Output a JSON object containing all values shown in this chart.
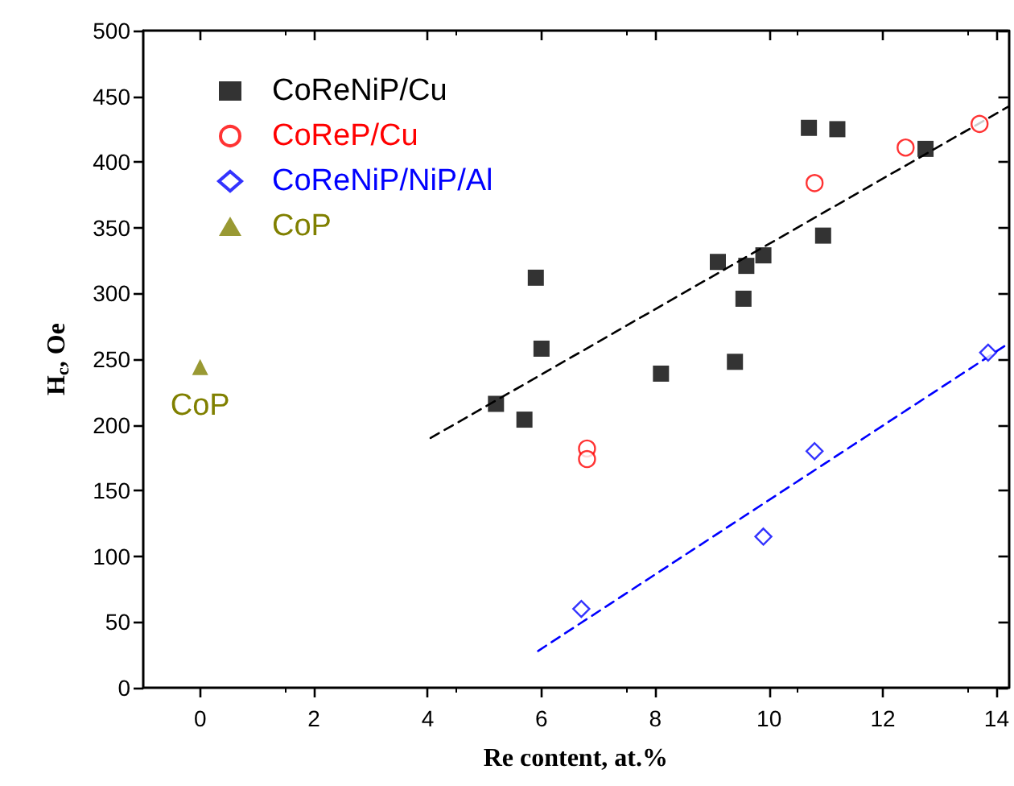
{
  "chart_data": {
    "type": "scatter",
    "xlabel": "Re content, at.%",
    "ylabel": "H$_{c}$, Oe",
    "xlim": [
      -1,
      14.2
    ],
    "xticks": [
      0,
      2,
      4,
      6,
      8,
      10,
      12,
      14
    ],
    "ylim": [
      0,
      500
    ],
    "yticks": [
      0,
      50,
      100,
      150,
      200,
      250,
      300,
      350,
      400,
      450,
      500
    ],
    "grid": false,
    "legend": "top left",
    "series": [
      {
        "name": "CoReNiP/Cu",
        "color": "#000000",
        "marker": "square",
        "x": [
          5.2,
          5.7,
          5.9,
          6.0,
          8.1,
          9.1,
          9.4,
          9.55,
          9.6,
          9.9,
          10.7,
          10.95,
          11.2,
          12.75
        ],
        "values": [
          216,
          204,
          312,
          258,
          239,
          324,
          248,
          296,
          321,
          329,
          426,
          344,
          425,
          410
        ]
      },
      {
        "name": "CoReP/Cu",
        "color": "#ff0000",
        "marker": "circle",
        "x": [
          6.8,
          6.8,
          10.8,
          12.4,
          13.7
        ],
        "values": [
          182,
          174,
          384,
          411,
          429
        ]
      },
      {
        "name": "CoReNiP/NiP/Al",
        "color": "#0000ff",
        "marker": "diamond",
        "x": [
          6.7,
          9.9,
          10.8,
          13.85
        ],
        "values": [
          60,
          115,
          180,
          255
        ]
      },
      {
        "name": "CoP",
        "color": "#808000",
        "marker": "triangle",
        "x": [
          0
        ],
        "values": [
          244
        ]
      },
      {
        "type": "line",
        "color": "#000000",
        "line_style": "dashed",
        "marker": "none",
        "x": [
          4.05,
          14.2
        ],
        "values": [
          190,
          442
        ]
      },
      {
        "type": "line",
        "color": "#0000ff",
        "line_style": "dashed",
        "marker": "none",
        "x": [
          5.94,
          14.14
        ],
        "values": [
          28,
          260
        ]
      }
    ],
    "annotations": [
      {
        "text": "CoP",
        "x": 0,
        "y": 244
      }
    ]
  }
}
